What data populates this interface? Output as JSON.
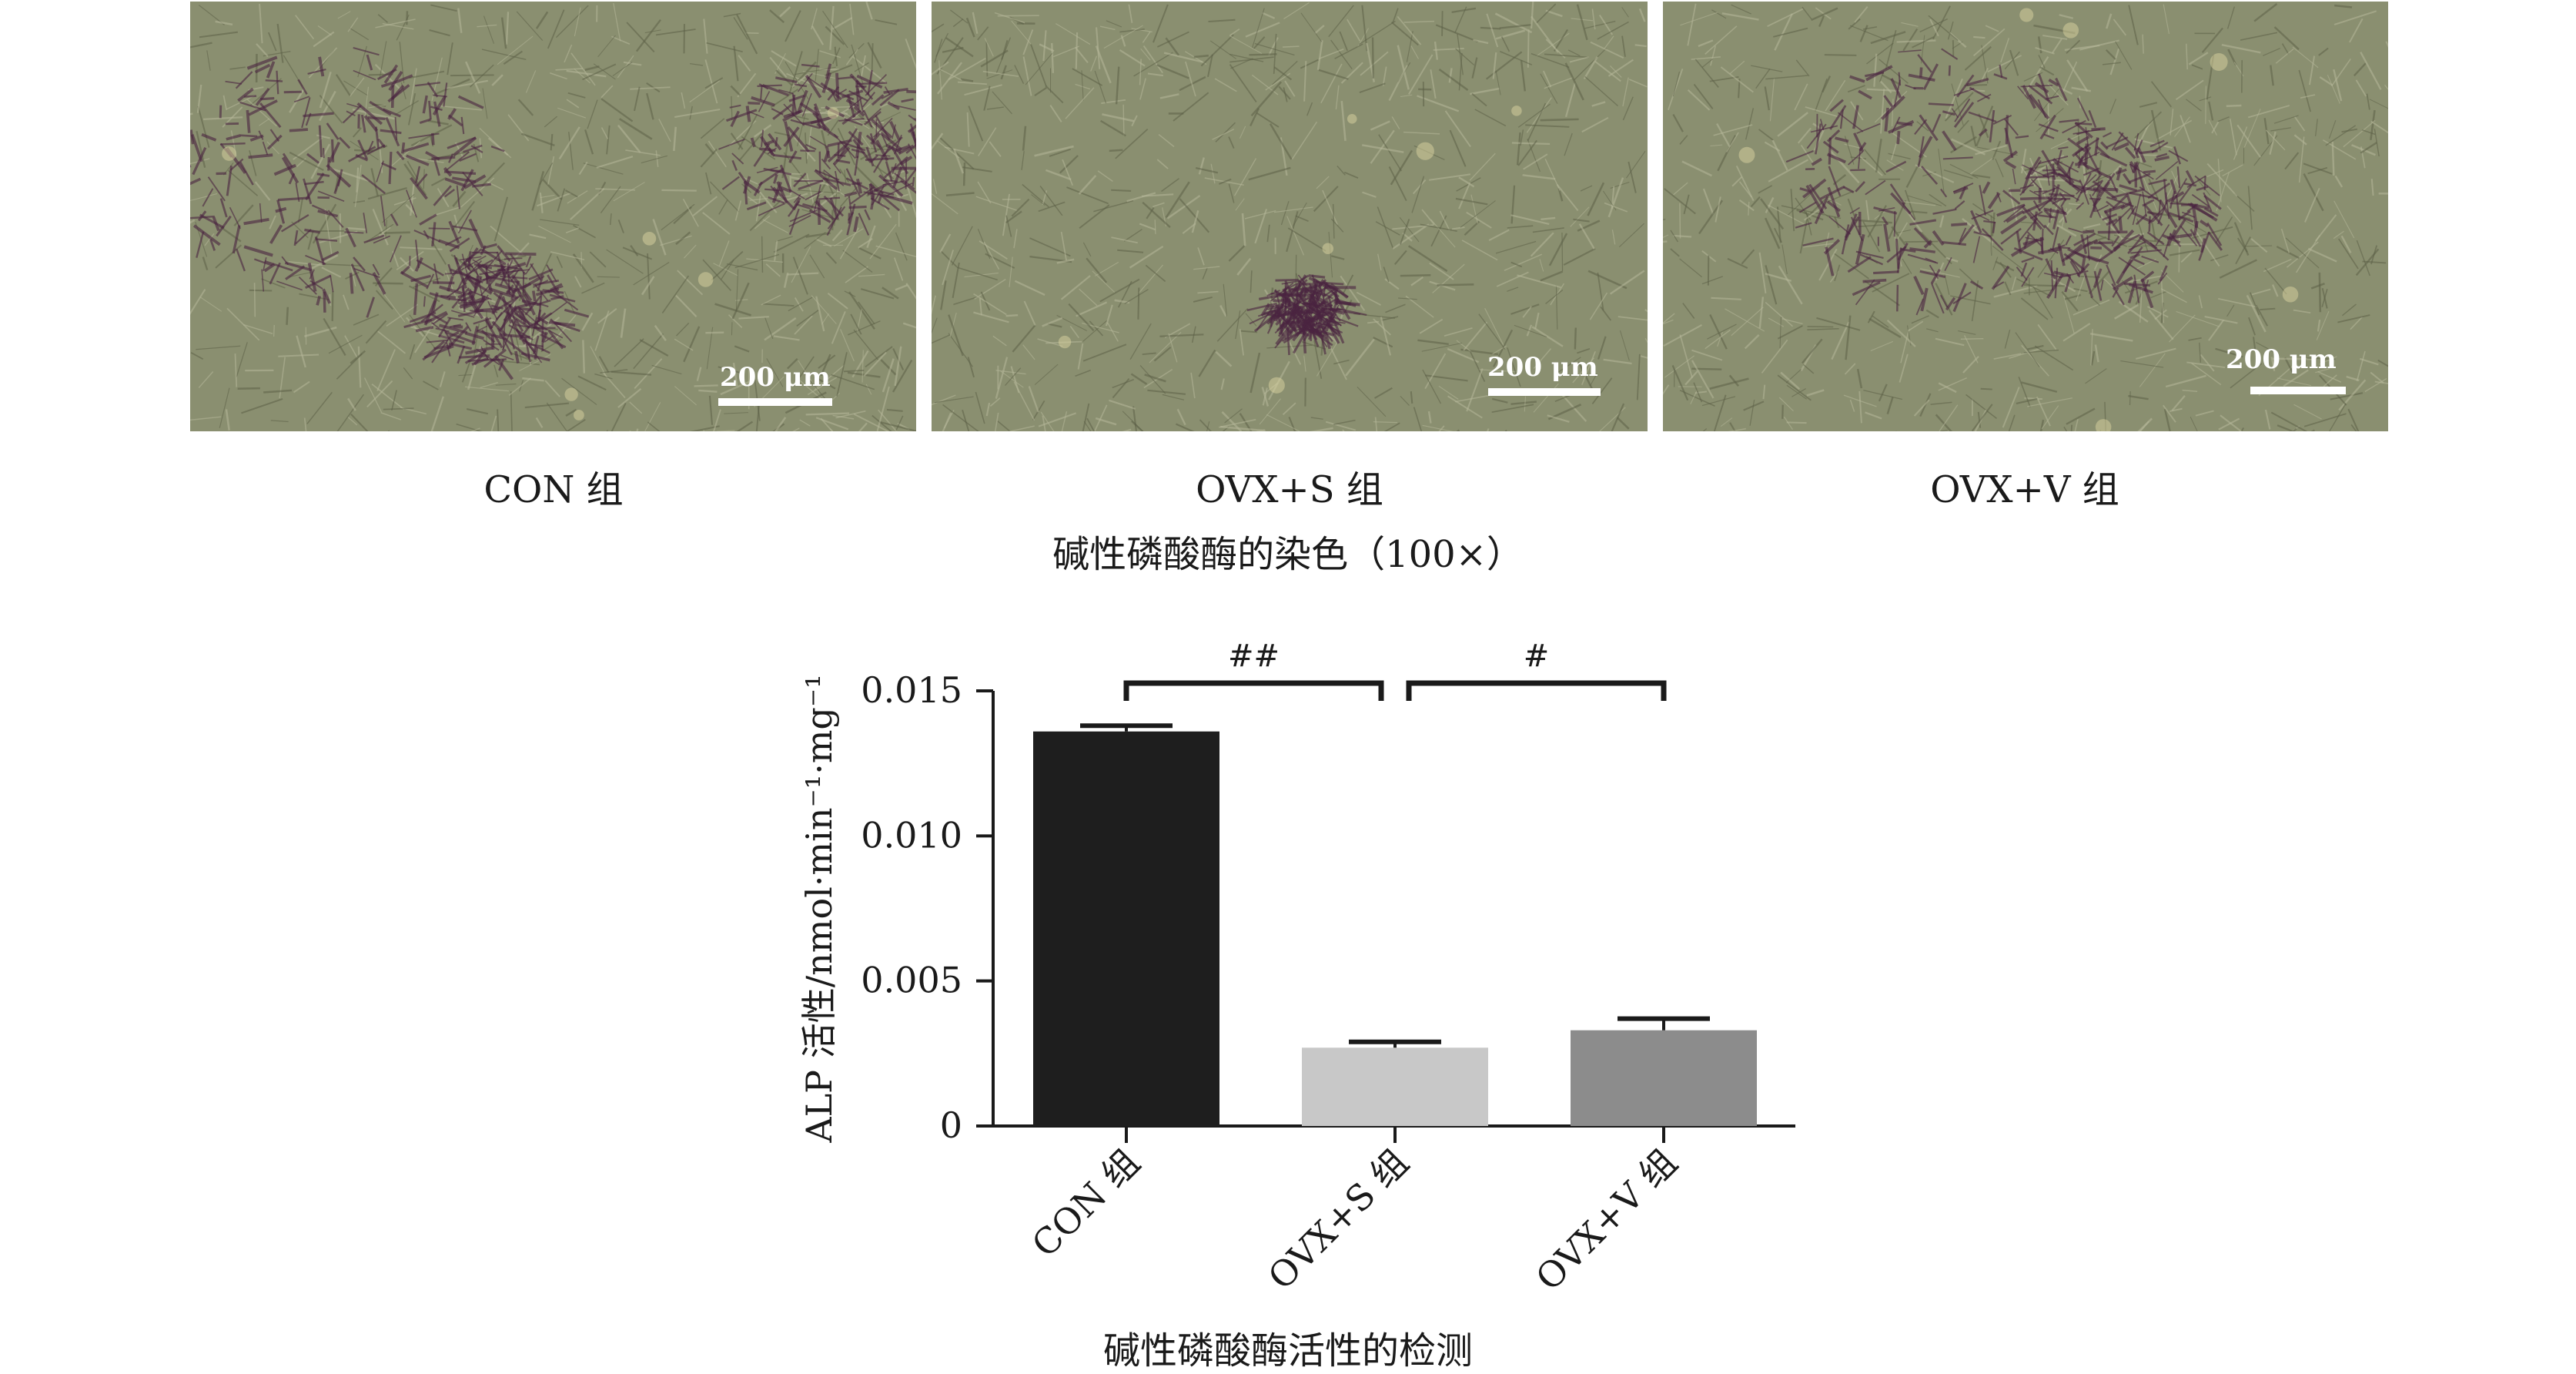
{
  "panels": [
    {
      "label": "CON 组",
      "scale_text": "200 μm"
    },
    {
      "label": "OVX+S 组",
      "scale_text": "200 μm"
    },
    {
      "label": "OVX+V 组",
      "scale_text": "200 μm"
    }
  ],
  "staining_caption": "碱性磷酸酶的染色（100×）",
  "chart_caption": "碱性磷酸酶活性的检测",
  "colors": {
    "photo_base": "#8a8f70",
    "stain": "#4a2440",
    "bar_con": "#1e1e1e",
    "bar_ovx_s": "#c8c8c8",
    "bar_ovx_v": "#8c8c8c"
  },
  "chart_data": {
    "type": "bar",
    "categories": [
      "CON 组",
      "OVX+S 组",
      "OVX+V 组"
    ],
    "values": [
      0.0136,
      0.0027,
      0.0033
    ],
    "errors": [
      0.0002,
      0.0002,
      0.0004
    ],
    "colors": [
      "#1e1e1e",
      "#c8c8c8",
      "#8c8c8c"
    ],
    "ylabel": "ALP 活性/nmol·min⁻¹·mg⁻¹",
    "ylim": [
      0,
      0.015
    ],
    "yticks": [
      "0",
      "0.005",
      "0.010",
      "0.015"
    ],
    "significance": [
      {
        "from": 0,
        "to": 1,
        "label": "##"
      },
      {
        "from": 1,
        "to": 2,
        "label": "#"
      }
    ]
  }
}
